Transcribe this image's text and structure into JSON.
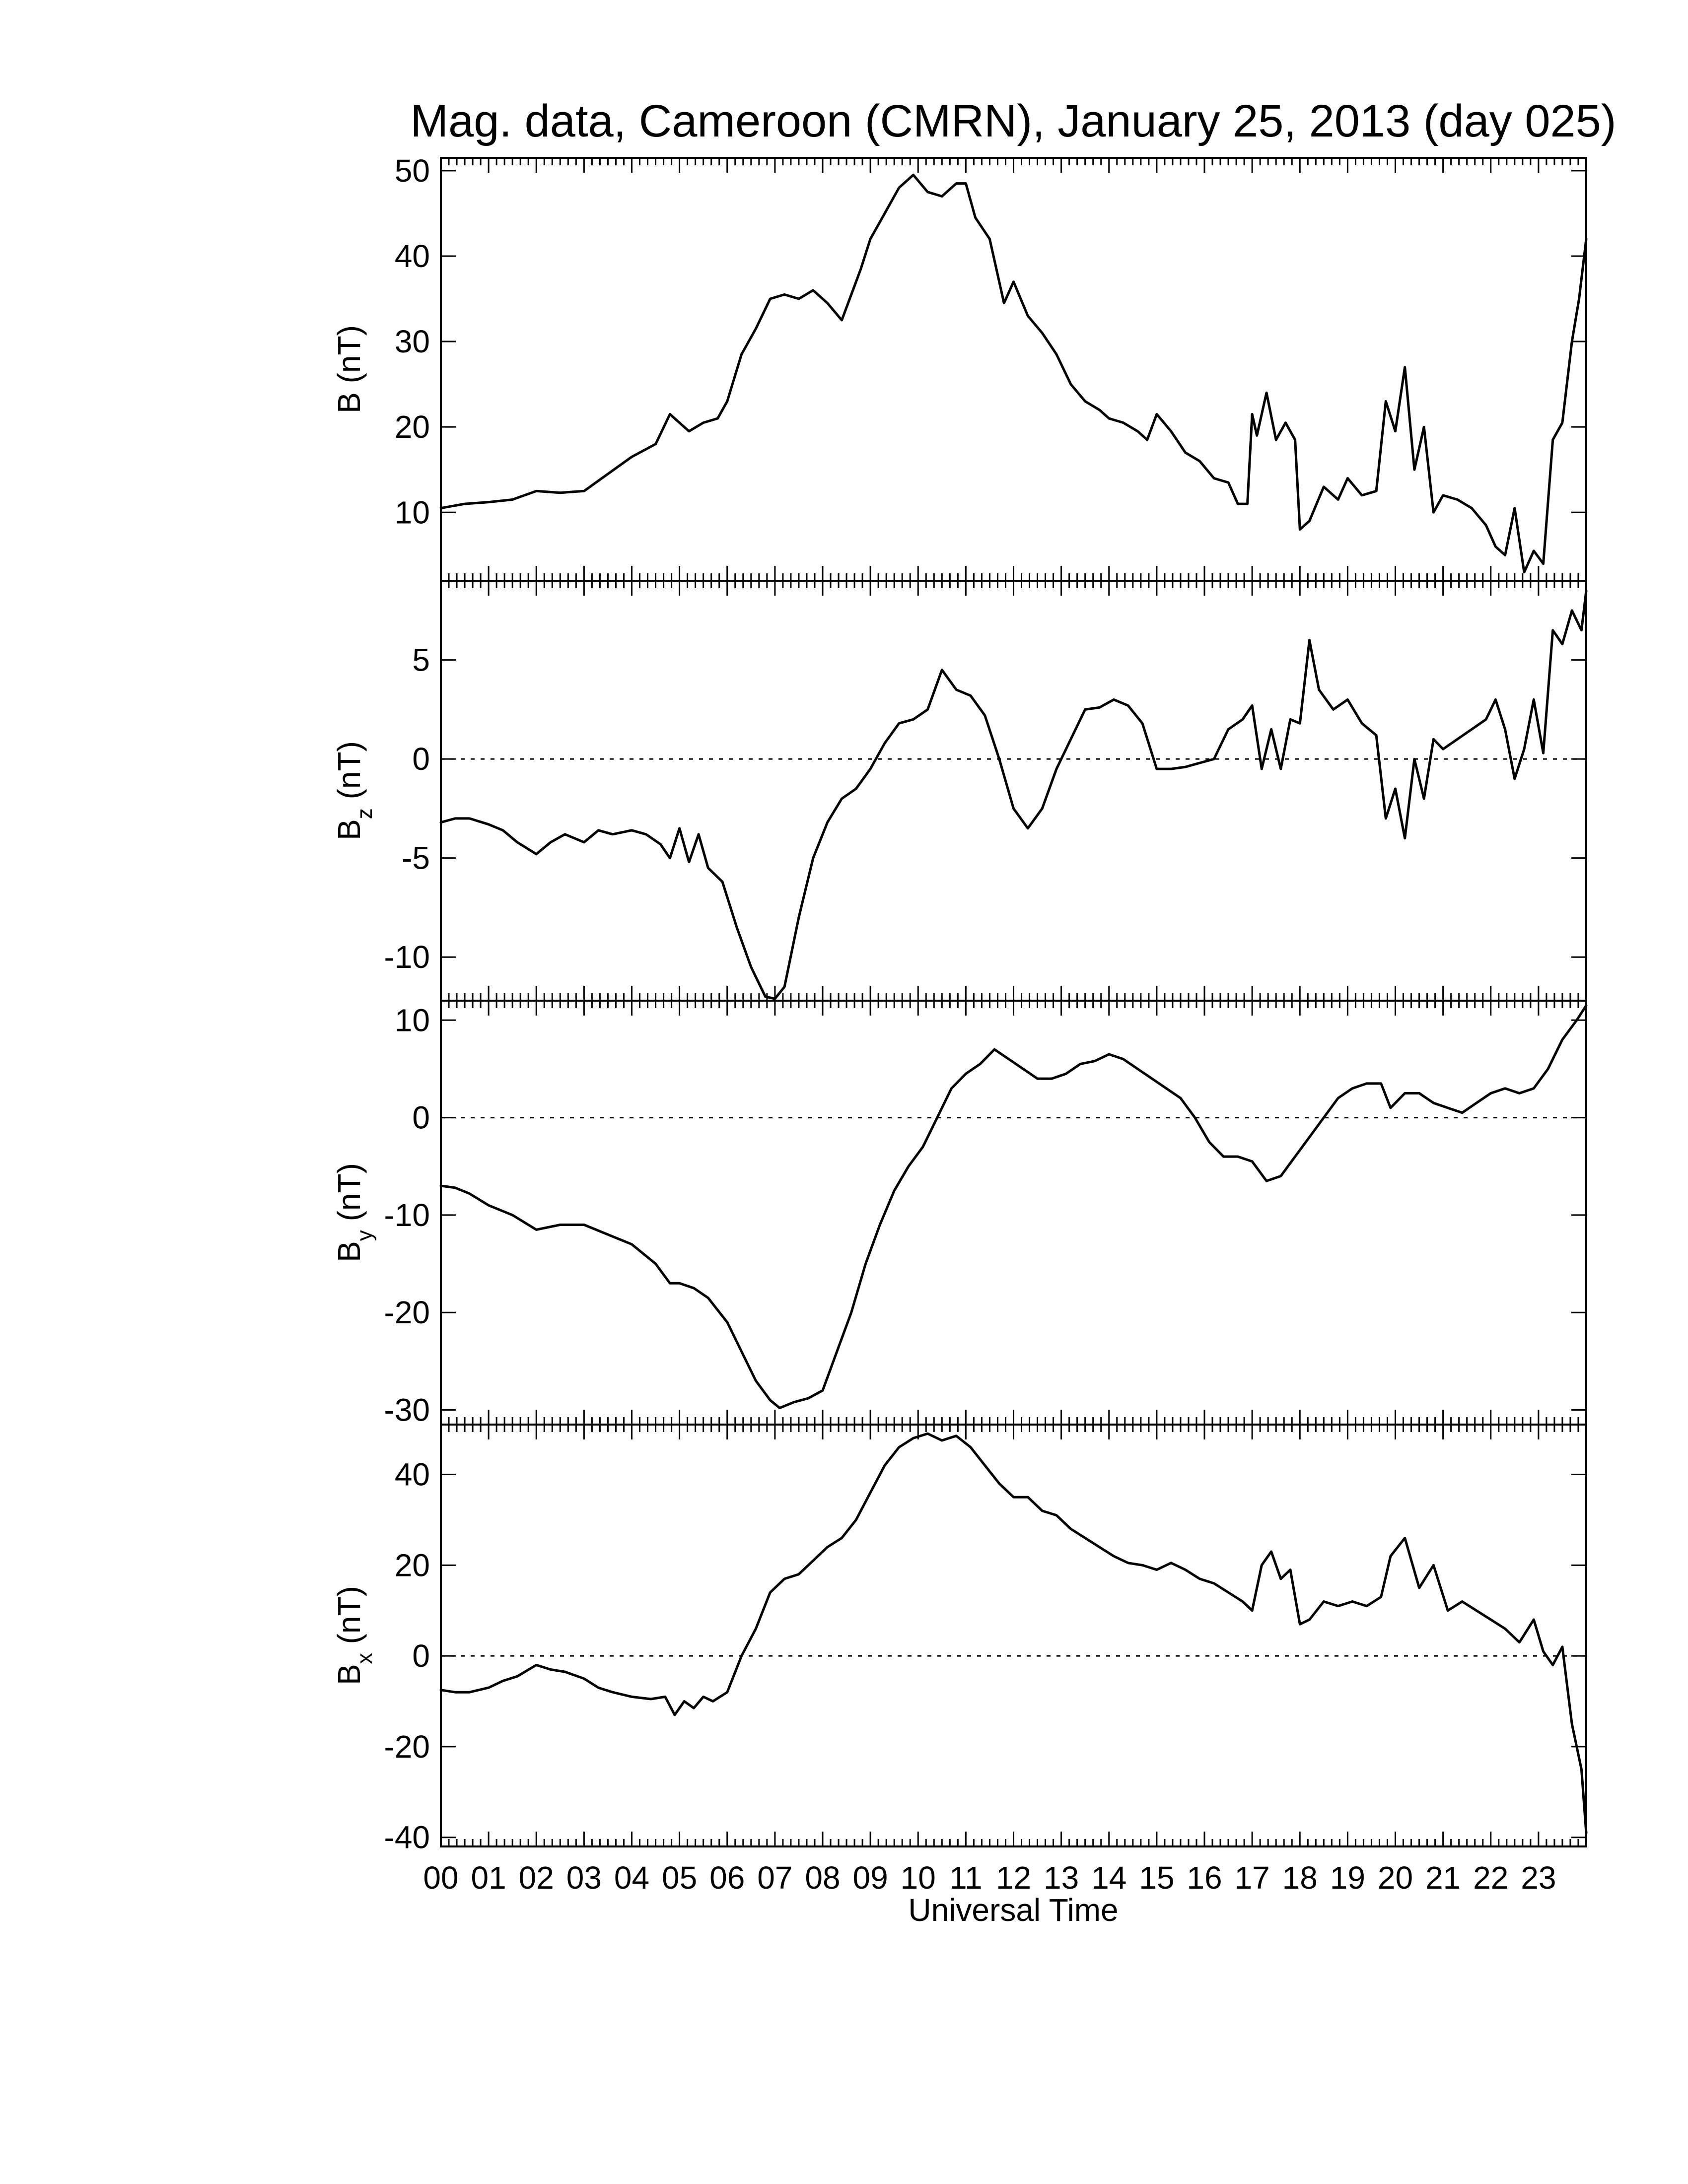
{
  "figure": {
    "title": "Mag. data, Cameroon (CMRN), January 25, 2013 (day 025)",
    "xlabel": "Universal Time"
  },
  "chart_data": [
    {
      "type": "line",
      "name": "B",
      "ylabel": "B (nT)",
      "ylabel_main": "B",
      "ylabel_sub": "",
      "ylabel_unit": "(nT)",
      "ylim": [
        2,
        51.5
      ],
      "yticks": [
        10,
        20,
        30,
        40,
        50
      ],
      "zero_line": false,
      "x_unit": "hours UT",
      "x": [
        0,
        0.5,
        1,
        1.5,
        2,
        2.5,
        3,
        3.5,
        4,
        4.5,
        4.8,
        5,
        5.2,
        5.5,
        5.8,
        6,
        6.3,
        6.6,
        6.9,
        7.2,
        7.5,
        7.8,
        8.1,
        8.4,
        8.6,
        8.8,
        9,
        9.3,
        9.6,
        9.9,
        10.2,
        10.5,
        10.8,
        11,
        11.2,
        11.5,
        11.8,
        12,
        12.3,
        12.6,
        12.9,
        13.2,
        13.5,
        13.8,
        14,
        14.3,
        14.6,
        14.8,
        15,
        15.3,
        15.6,
        15.9,
        16.2,
        16.5,
        16.7,
        16.9,
        17,
        17.1,
        17.3,
        17.5,
        17.7,
        17.9,
        18,
        18.2,
        18.5,
        18.8,
        19,
        19.3,
        19.6,
        19.8,
        20,
        20.2,
        20.4,
        20.6,
        20.8,
        21,
        21.3,
        21.6,
        21.9,
        22.1,
        22.3,
        22.5,
        22.7,
        22.9,
        23.1,
        23.3,
        23.5,
        23.7,
        23.85,
        24
      ],
      "y": [
        10.5,
        11,
        11.2,
        11.5,
        12.5,
        12.3,
        12.5,
        14.5,
        16.5,
        18,
        21.5,
        20.5,
        19.5,
        20.5,
        21,
        23,
        28.5,
        31.5,
        35,
        35.5,
        35,
        36,
        34.5,
        32.5,
        35.5,
        38.5,
        42,
        45,
        48,
        49.5,
        47.5,
        47,
        48.5,
        48.5,
        44.5,
        42,
        34.5,
        37,
        33,
        31,
        28.5,
        25,
        23,
        22,
        21,
        20.5,
        19.5,
        18.5,
        21.5,
        19.5,
        17,
        16,
        14,
        13.5,
        11,
        11,
        21.5,
        19,
        24,
        18.5,
        20.5,
        18.5,
        8,
        9,
        13,
        11.5,
        14,
        12,
        12.5,
        23,
        19.5,
        27,
        15,
        20,
        10,
        12,
        11.5,
        10.5,
        8.5,
        6,
        5,
        10.5,
        3,
        5.5,
        4,
        18.5,
        20.5,
        30,
        35,
        42
      ]
    },
    {
      "type": "line",
      "name": "Bz",
      "ylabel": "Bz (nT)",
      "ylabel_main": "B",
      "ylabel_sub": "z",
      "ylabel_unit": "(nT)",
      "ylim": [
        -12.2,
        9
      ],
      "yticks": [
        -10,
        -5,
        0,
        5
      ],
      "zero_line": true,
      "x_unit": "hours UT",
      "x": [
        0,
        0.3,
        0.6,
        1,
        1.3,
        1.6,
        2,
        2.3,
        2.6,
        3,
        3.3,
        3.6,
        4,
        4.3,
        4.6,
        4.8,
        5,
        5.2,
        5.4,
        5.6,
        5.9,
        6.2,
        6.5,
        6.8,
        7,
        7.2,
        7.5,
        7.8,
        8.1,
        8.4,
        8.7,
        9,
        9.3,
        9.6,
        9.9,
        10.2,
        10.5,
        10.8,
        11.1,
        11.4,
        11.7,
        12,
        12.3,
        12.6,
        12.9,
        13.2,
        13.5,
        13.8,
        14.1,
        14.4,
        14.7,
        15,
        15.3,
        15.6,
        15.9,
        16.2,
        16.5,
        16.8,
        17,
        17.2,
        17.4,
        17.6,
        17.8,
        18,
        18.2,
        18.4,
        18.7,
        19,
        19.3,
        19.6,
        19.8,
        20,
        20.2,
        20.4,
        20.6,
        20.8,
        21,
        21.3,
        21.6,
        21.9,
        22.1,
        22.3,
        22.5,
        22.7,
        22.9,
        23.1,
        23.3,
        23.5,
        23.7,
        23.9,
        24
      ],
      "y": [
        -3.2,
        -3,
        -3,
        -3.3,
        -3.6,
        -4.2,
        -4.8,
        -4.2,
        -3.8,
        -4.2,
        -3.6,
        -3.8,
        -3.6,
        -3.8,
        -4.3,
        -5,
        -3.5,
        -5.2,
        -3.8,
        -5.5,
        -6.2,
        -8.5,
        -10.5,
        -12,
        -12.1,
        -11.5,
        -8,
        -5,
        -3.2,
        -2,
        -1.5,
        -0.5,
        0.8,
        1.8,
        2,
        2.5,
        4.5,
        3.5,
        3.2,
        2.2,
        0,
        -2.5,
        -3.5,
        -2.5,
        -0.5,
        1,
        2.5,
        2.6,
        3,
        2.7,
        1.8,
        -0.5,
        -0.5,
        -0.4,
        -0.2,
        0,
        1.5,
        2,
        2.7,
        -0.5,
        1.5,
        -0.5,
        2,
        1.8,
        6,
        3.5,
        2.5,
        3,
        1.8,
        1.2,
        -3,
        -1.5,
        -4,
        0,
        -2,
        1,
        0.5,
        1,
        1.5,
        2,
        3,
        1.5,
        -1,
        0.5,
        3,
        0.3,
        6.5,
        5.8,
        7.5,
        6.5,
        8.5
      ]
    },
    {
      "type": "line",
      "name": "By",
      "ylabel": "By (nT)",
      "ylabel_main": "B",
      "ylabel_sub": "y",
      "ylabel_unit": "(nT)",
      "ylim": [
        -31.5,
        12
      ],
      "yticks": [
        -30,
        -20,
        -10,
        0,
        10
      ],
      "zero_line": true,
      "x_unit": "hours UT",
      "x": [
        0,
        0.3,
        0.6,
        1,
        1.5,
        2,
        2.5,
        3,
        3.5,
        4,
        4.5,
        4.8,
        5,
        5.3,
        5.6,
        6,
        6.3,
        6.6,
        6.9,
        7.1,
        7.4,
        7.7,
        8,
        8.3,
        8.6,
        8.9,
        9.2,
        9.5,
        9.8,
        10.1,
        10.4,
        10.7,
        11,
        11.3,
        11.6,
        11.9,
        12.2,
        12.5,
        12.8,
        13.1,
        13.4,
        13.7,
        14,
        14.3,
        14.6,
        14.9,
        15.2,
        15.5,
        15.8,
        16.1,
        16.4,
        16.7,
        17,
        17.3,
        17.6,
        17.9,
        18.2,
        18.5,
        18.8,
        19.1,
        19.4,
        19.7,
        19.9,
        20.2,
        20.5,
        20.8,
        21.1,
        21.4,
        21.7,
        22,
        22.3,
        22.6,
        22.9,
        23.2,
        23.5,
        23.8,
        24
      ],
      "y": [
        -7,
        -7.2,
        -7.8,
        -9,
        -10,
        -11.5,
        -11,
        -11,
        -12,
        -13,
        -15,
        -17,
        -17,
        -17.5,
        -18.5,
        -21,
        -24,
        -27,
        -29,
        -29.8,
        -29.2,
        -28.8,
        -28,
        -24,
        -20,
        -15,
        -11,
        -7.5,
        -5,
        -3,
        0,
        3,
        4.5,
        5.5,
        7,
        6,
        5,
        4,
        4,
        4.5,
        5.5,
        5.8,
        6.5,
        6,
        5,
        4,
        3,
        2,
        0,
        -2.5,
        -4,
        -4,
        -4.5,
        -6.5,
        -6,
        -4,
        -2,
        0,
        2,
        3,
        3.5,
        3.5,
        1,
        2.5,
        2.5,
        1.5,
        1,
        0.5,
        1.5,
        2.5,
        3,
        2.5,
        3,
        5,
        8,
        10,
        11.5
      ]
    },
    {
      "type": "line",
      "name": "Bx",
      "ylabel": "Bx (nT)",
      "ylabel_main": "B",
      "ylabel_sub": "x",
      "ylabel_unit": "(nT)",
      "ylim": [
        -42,
        51
      ],
      "yticks": [
        -40,
        -20,
        0,
        20,
        40
      ],
      "zero_line": true,
      "x_unit": "hours UT",
      "x": [
        0,
        0.3,
        0.6,
        1,
        1.3,
        1.6,
        2,
        2.3,
        2.6,
        3,
        3.3,
        3.6,
        4,
        4.4,
        4.7,
        4.9,
        5.1,
        5.3,
        5.5,
        5.7,
        6,
        6.3,
        6.6,
        6.9,
        7.2,
        7.5,
        7.8,
        8.1,
        8.4,
        8.7,
        9,
        9.3,
        9.6,
        9.9,
        10.2,
        10.5,
        10.8,
        11.1,
        11.4,
        11.7,
        12,
        12.3,
        12.6,
        12.9,
        13.2,
        13.5,
        13.8,
        14.1,
        14.4,
        14.7,
        15,
        15.3,
        15.6,
        15.9,
        16.2,
        16.5,
        16.8,
        17,
        17.2,
        17.4,
        17.6,
        17.8,
        18,
        18.2,
        18.5,
        18.8,
        19.1,
        19.4,
        19.7,
        19.9,
        20.2,
        20.5,
        20.8,
        21.1,
        21.4,
        21.7,
        22,
        22.3,
        22.6,
        22.9,
        23.1,
        23.3,
        23.5,
        23.7,
        23.9,
        24
      ],
      "y": [
        -7.5,
        -8,
        -8,
        -7,
        -5.5,
        -4.5,
        -2,
        -3,
        -3.5,
        -5,
        -7,
        -8,
        -9,
        -9.5,
        -9,
        -13,
        -10,
        -11.5,
        -9,
        -10,
        -8,
        0,
        6,
        14,
        17,
        18,
        21,
        24,
        26,
        30,
        36,
        42,
        46,
        48,
        49,
        47.5,
        48.5,
        46,
        42,
        38,
        35,
        35,
        32,
        31,
        28,
        26,
        24,
        22,
        20.5,
        20,
        19,
        20.5,
        19,
        17,
        16,
        14,
        12,
        10,
        20,
        23,
        17,
        19,
        7,
        8,
        12,
        11,
        12,
        11,
        13,
        22,
        26,
        15,
        20,
        10,
        12,
        10,
        8,
        6,
        3,
        8,
        1,
        -2,
        2,
        -15,
        -25,
        -39
      ]
    }
  ]
}
